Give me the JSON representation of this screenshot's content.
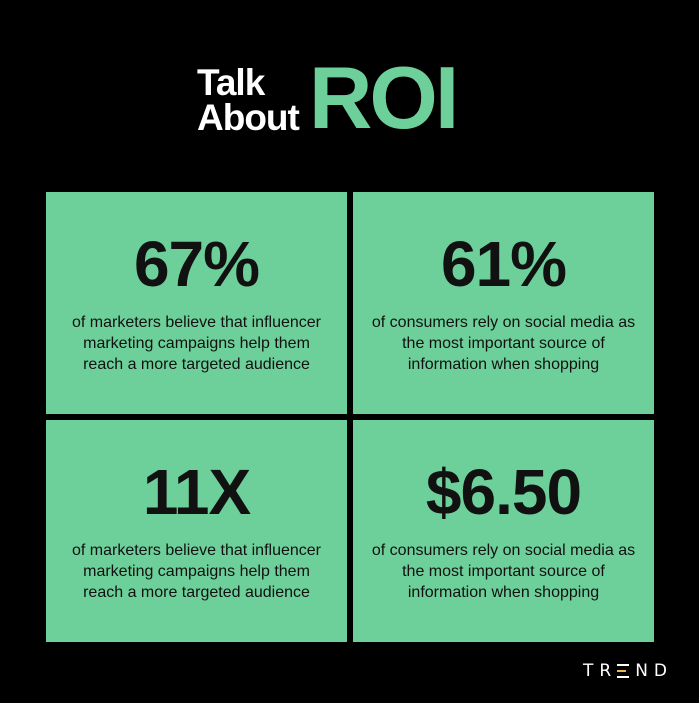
{
  "header": {
    "line1": "Talk",
    "line2": "About",
    "highlight": "ROI"
  },
  "tiles": [
    {
      "stat": "67%",
      "description": "of marketers believe that influencer marketing campaigns help them reach a more targeted audience"
    },
    {
      "stat": "61%",
      "description": "of consumers rely on social media as the most important source of information when shopping"
    },
    {
      "stat": "11X",
      "description": "of marketers believe that influencer marketing campaigns help them reach a more targeted audience"
    },
    {
      "stat": "$6.50",
      "description": "of consumers rely on social media as the most important source of information when shopping"
    }
  ],
  "brand": {
    "logo_text": "TREND",
    "prefix": "TR",
    "suffix": "ND"
  },
  "colors": {
    "background": "#000000",
    "accent_green": "#6dd09a",
    "text_dark": "#111111",
    "brand_accent": "#e8b84a"
  }
}
